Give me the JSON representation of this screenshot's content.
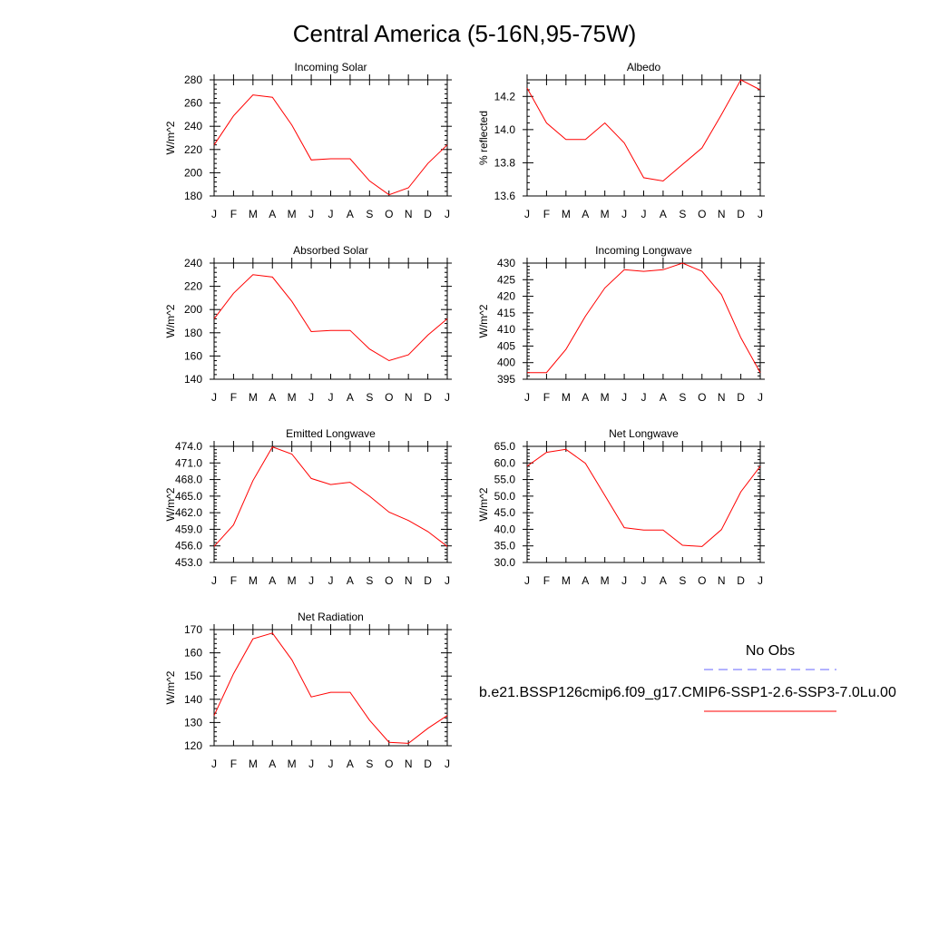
{
  "figure": {
    "title": "Central America (5-16N,95-75W)"
  },
  "months": [
    "J",
    "F",
    "M",
    "A",
    "M",
    "J",
    "J",
    "A",
    "S",
    "O",
    "N",
    "D",
    "J"
  ],
  "series_color": "#ff0000",
  "obs_color": "#6666ff",
  "legend": {
    "obs_label": "No Obs",
    "model_label": "b.e21.BSSP126cmip6.f09_g17.CMIP6-SSP1-2.6-SSP3-7.0Lu.00"
  },
  "chart_data": [
    {
      "id": "incoming-solar",
      "type": "line",
      "title": "Incoming Solar",
      "ylabel": "W/m^2",
      "ylim": [
        180,
        280
      ],
      "yticks": [
        180,
        200,
        220,
        240,
        260,
        280
      ],
      "ytick_labels": [
        "180",
        "200",
        "220",
        "240",
        "260",
        "280"
      ],
      "values": [
        224,
        249,
        267,
        265,
        241,
        211,
        212,
        212,
        193,
        181,
        187,
        208,
        224
      ]
    },
    {
      "id": "albedo",
      "type": "line",
      "title": "Albedo",
      "ylabel": "% reflected",
      "ylim": [
        13.6,
        14.3
      ],
      "yticks": [
        13.6,
        13.8,
        14.0,
        14.2
      ],
      "ytick_labels": [
        "13.6",
        "13.8",
        "14.0",
        "14.2"
      ],
      "values": [
        14.25,
        14.04,
        13.94,
        13.94,
        14.04,
        13.92,
        13.71,
        13.69,
        13.79,
        13.89,
        14.09,
        14.3,
        14.24
      ]
    },
    {
      "id": "absorbed-solar",
      "type": "line",
      "title": "Absorbed Solar",
      "ylabel": "W/m^2",
      "ylim": [
        140,
        240
      ],
      "yticks": [
        140,
        160,
        180,
        200,
        220,
        240
      ],
      "ytick_labels": [
        "140",
        "160",
        "180",
        "200",
        "220",
        "240"
      ],
      "values": [
        192,
        214,
        230,
        228,
        207,
        181,
        182,
        182,
        166,
        156,
        161,
        178,
        192
      ]
    },
    {
      "id": "incoming-longwave",
      "type": "line",
      "title": "Incoming Longwave",
      "ylabel": "W/m^2",
      "ylim": [
        395,
        430
      ],
      "yticks": [
        395,
        400,
        405,
        410,
        415,
        420,
        425,
        430
      ],
      "ytick_labels": [
        "395",
        "400",
        "405",
        "410",
        "415",
        "420",
        "425",
        "430"
      ],
      "values": [
        397,
        397,
        404,
        414,
        422.5,
        428,
        427.5,
        428,
        430,
        427.5,
        420.5,
        407.5,
        397
      ]
    },
    {
      "id": "emitted-longwave",
      "type": "line",
      "title": "Emitted Longwave",
      "ylabel": "W/m^2",
      "ylim": [
        453,
        474
      ],
      "yticks": [
        453,
        456,
        459,
        462,
        465,
        468,
        471,
        474
      ],
      "ytick_labels": [
        "453.0",
        "456.0",
        "459.0",
        "462.0",
        "465.0",
        "468.0",
        "471.0",
        "474.0"
      ],
      "values": [
        455.9,
        459.8,
        467.8,
        473.9,
        472.6,
        468.2,
        467.1,
        467.5,
        465,
        462.1,
        460.6,
        458.6,
        455.9
      ]
    },
    {
      "id": "net-longwave",
      "type": "line",
      "title": "Net Longwave",
      "ylabel": "W/m^2",
      "ylim": [
        30,
        65
      ],
      "yticks": [
        30,
        35,
        40,
        45,
        50,
        55,
        60,
        65
      ],
      "ytick_labels": [
        "30.0",
        "35.0",
        "40.0",
        "45.0",
        "50.0",
        "55.0",
        "60.0",
        "65.0"
      ],
      "values": [
        59,
        63.2,
        64.1,
        59.9,
        50.2,
        40.5,
        39.8,
        39.8,
        35.2,
        34.8,
        39.9,
        51.3,
        59
      ]
    },
    {
      "id": "net-radiation",
      "type": "line",
      "title": "Net Radiation",
      "ylabel": "W/m^2",
      "ylim": [
        120,
        170
      ],
      "yticks": [
        120,
        130,
        140,
        150,
        160,
        170
      ],
      "ytick_labels": [
        "120",
        "130",
        "140",
        "150",
        "160",
        "170"
      ],
      "values": [
        133,
        151,
        166,
        168.5,
        157,
        141,
        143,
        143,
        131,
        121.5,
        121,
        127.5,
        133
      ]
    }
  ]
}
